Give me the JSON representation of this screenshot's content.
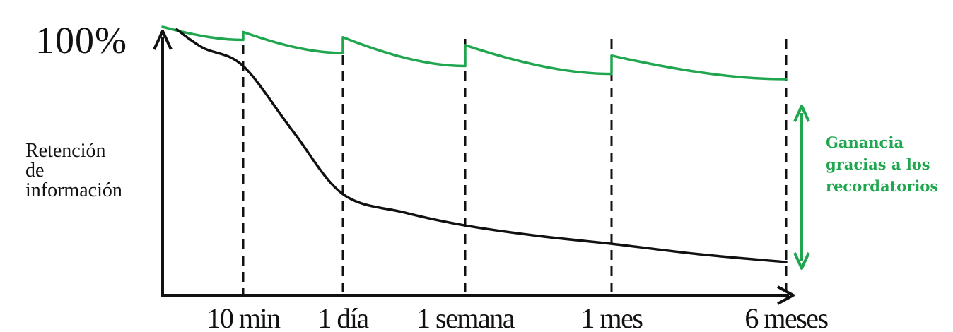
{
  "chart_data": {
    "type": "line",
    "ylabel_lines": [
      "Retención",
      "de",
      "información"
    ],
    "y_top_label": "100%",
    "x_ticks": [
      "10 min",
      "1 día",
      "1 semana",
      "1 mes",
      "6 meses"
    ],
    "ylim": [
      0,
      100
    ],
    "grid": false,
    "annotation": {
      "lines": [
        "Ganancia",
        "gracias a los",
        "recordatorios"
      ]
    },
    "series": [
      {
        "key": "with_reminders",
        "color": "#1fa64f",
        "x": [
          0,
          0,
          1,
          1,
          2,
          2,
          3,
          3,
          4,
          4,
          5
        ],
        "values": [
          96,
          100,
          95,
          98,
          90,
          96,
          85,
          93,
          82,
          89,
          80
        ],
        "reset_indices": [
          2,
          4,
          6,
          8
        ]
      },
      {
        "key": "without_reminders",
        "color": "#111111",
        "x": [
          0,
          0.5,
          1,
          1.5,
          2,
          2.5,
          3,
          3.5,
          4,
          4.5,
          5
        ],
        "values": [
          99,
          92,
          85,
          60,
          36,
          29,
          24,
          20,
          17,
          13,
          10
        ]
      }
    ]
  }
}
